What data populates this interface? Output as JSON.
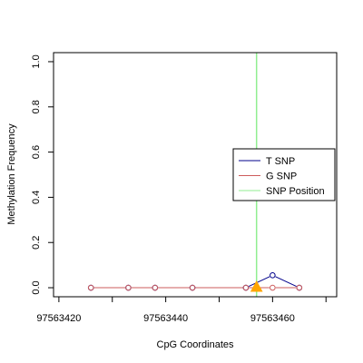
{
  "chart_data": {
    "type": "line",
    "title": "",
    "xlabel": "CpG Coordinates",
    "ylabel": "Methylation Frequency",
    "xlim": [
      97563419,
      97563472
    ],
    "ylim": [
      -0.04,
      1.04
    ],
    "x_ticks": [
      97563420,
      97563430,
      97563440,
      97563450,
      97563460,
      97563470
    ],
    "x_tick_labels": [
      "97563420",
      "",
      "97563440",
      "",
      "97563460",
      ""
    ],
    "y_ticks": [
      0.0,
      0.2,
      0.4,
      0.6,
      0.8,
      1.0
    ],
    "y_tick_labels": [
      "0.0",
      "0.2",
      "0.4",
      "0.6",
      "0.8",
      "1.0"
    ],
    "series": [
      {
        "name": "T SNP",
        "color": "#00008B",
        "x": [
          97563426,
          97563433,
          97563438,
          97563445,
          97563455,
          97563460,
          97563465
        ],
        "y": [
          0.0,
          0.0,
          0.0,
          0.0,
          0.0,
          0.055,
          0.0
        ]
      },
      {
        "name": "G SNP",
        "color": "#CD5C5C",
        "x": [
          97563426,
          97563433,
          97563438,
          97563445,
          97563455,
          97563460,
          97563465
        ],
        "y": [
          0.0,
          0.0,
          0.0,
          0.0,
          0.0,
          0.0,
          0.0
        ]
      }
    ],
    "snp_position": {
      "name": "SNP Position",
      "x": 97563457,
      "color": "#90EE90"
    },
    "snp_marker_color": "#FFA500",
    "legend": {
      "placement": "right",
      "entries": [
        {
          "label": "T SNP",
          "color": "#00008B"
        },
        {
          "label": "G SNP",
          "color": "#CD5C5C"
        },
        {
          "label": "SNP Position",
          "color": "#90EE90"
        }
      ]
    },
    "grid": false
  }
}
